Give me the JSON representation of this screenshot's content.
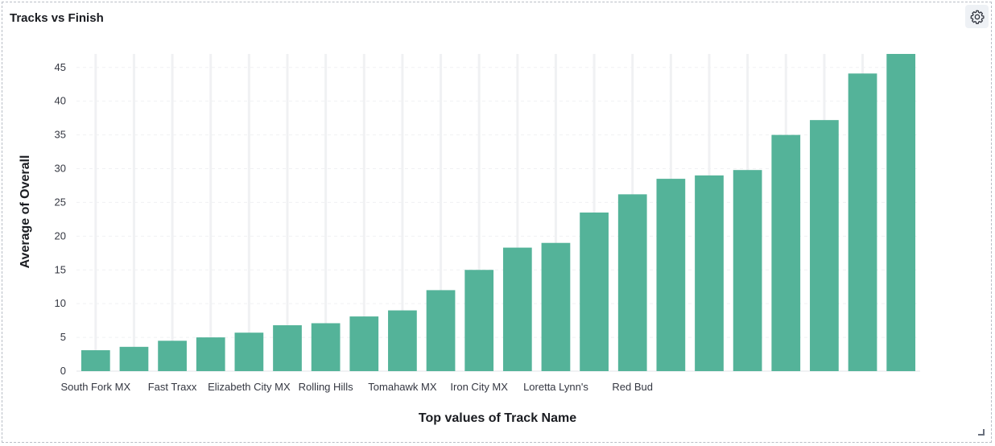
{
  "panel": {
    "title": "Tracks vs Finish",
    "settings_icon": "gear-icon"
  },
  "colors": {
    "bar": "#54b399",
    "gridline": "#f0f1f3",
    "text": "#343741"
  },
  "chart_data": {
    "type": "bar",
    "title": "Tracks vs Finish",
    "xlabel": "Top values of Track Name",
    "ylabel": "Average of Overall",
    "ylim": [
      0,
      47
    ],
    "yticks": [
      0,
      5,
      10,
      15,
      20,
      25,
      30,
      35,
      40,
      45
    ],
    "grid": true,
    "visible_category_labels": [
      "South Fork MX",
      "Fast Traxx",
      "Elizabeth City MX",
      "Rolling Hills",
      "Tomahawk MX",
      "Iron City MX",
      "Loretta Lynn's",
      "Red Bud"
    ],
    "label_every": 2,
    "values": [
      3.1,
      3.6,
      4.5,
      5.0,
      5.7,
      6.8,
      7.1,
      8.1,
      9.0,
      12.0,
      15.0,
      18.3,
      19.0,
      23.5,
      26.2,
      28.5,
      29.0,
      29.8,
      35.0,
      37.2,
      44.1,
      47.0
    ]
  }
}
